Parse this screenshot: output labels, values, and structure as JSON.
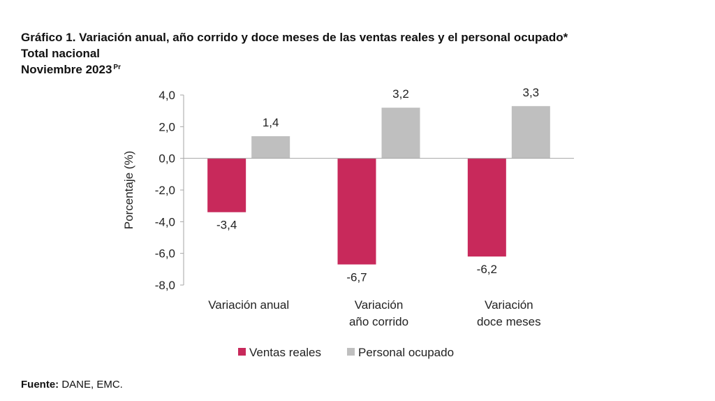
{
  "header": {
    "title": "Gráfico 1. Variación anual, año corrido y doce meses de las ventas reales y el personal ocupado*",
    "subtitle": "Total nacional",
    "period": "Noviembre 2023",
    "period_sup": "Pr"
  },
  "footer": {
    "source_label": "Fuente:",
    "source_text": " DANE, EMC."
  },
  "colors": {
    "ventas": "#C8295B",
    "personal": "#BFBFBF",
    "axis": "#A6A6A6"
  },
  "chart_data": {
    "type": "bar",
    "categories": [
      [
        "Variación anual"
      ],
      [
        "Variación",
        "año corrido"
      ],
      [
        "Variación",
        "doce meses"
      ]
    ],
    "series": [
      {
        "name": "Ventas reales",
        "values": [
          -3.4,
          -6.7,
          -6.2
        ],
        "labels": [
          "-3,4",
          "-6,7",
          "-6,2"
        ]
      },
      {
        "name": "Personal ocupado",
        "values": [
          1.4,
          3.2,
          3.3
        ],
        "labels": [
          "1,4",
          "3,2",
          "3,3"
        ]
      }
    ],
    "ylabel": "Porcentaje (%)",
    "ylim": [
      -8,
      4
    ],
    "yticks": [
      4,
      2,
      0,
      -2,
      -4,
      -6,
      -8
    ],
    "ytick_labels": [
      "4,0",
      "2,0",
      "0,0",
      "-2,0",
      "-4,0",
      "-6,0",
      "-8,0"
    ],
    "legend_position": "bottom",
    "grid": false
  }
}
